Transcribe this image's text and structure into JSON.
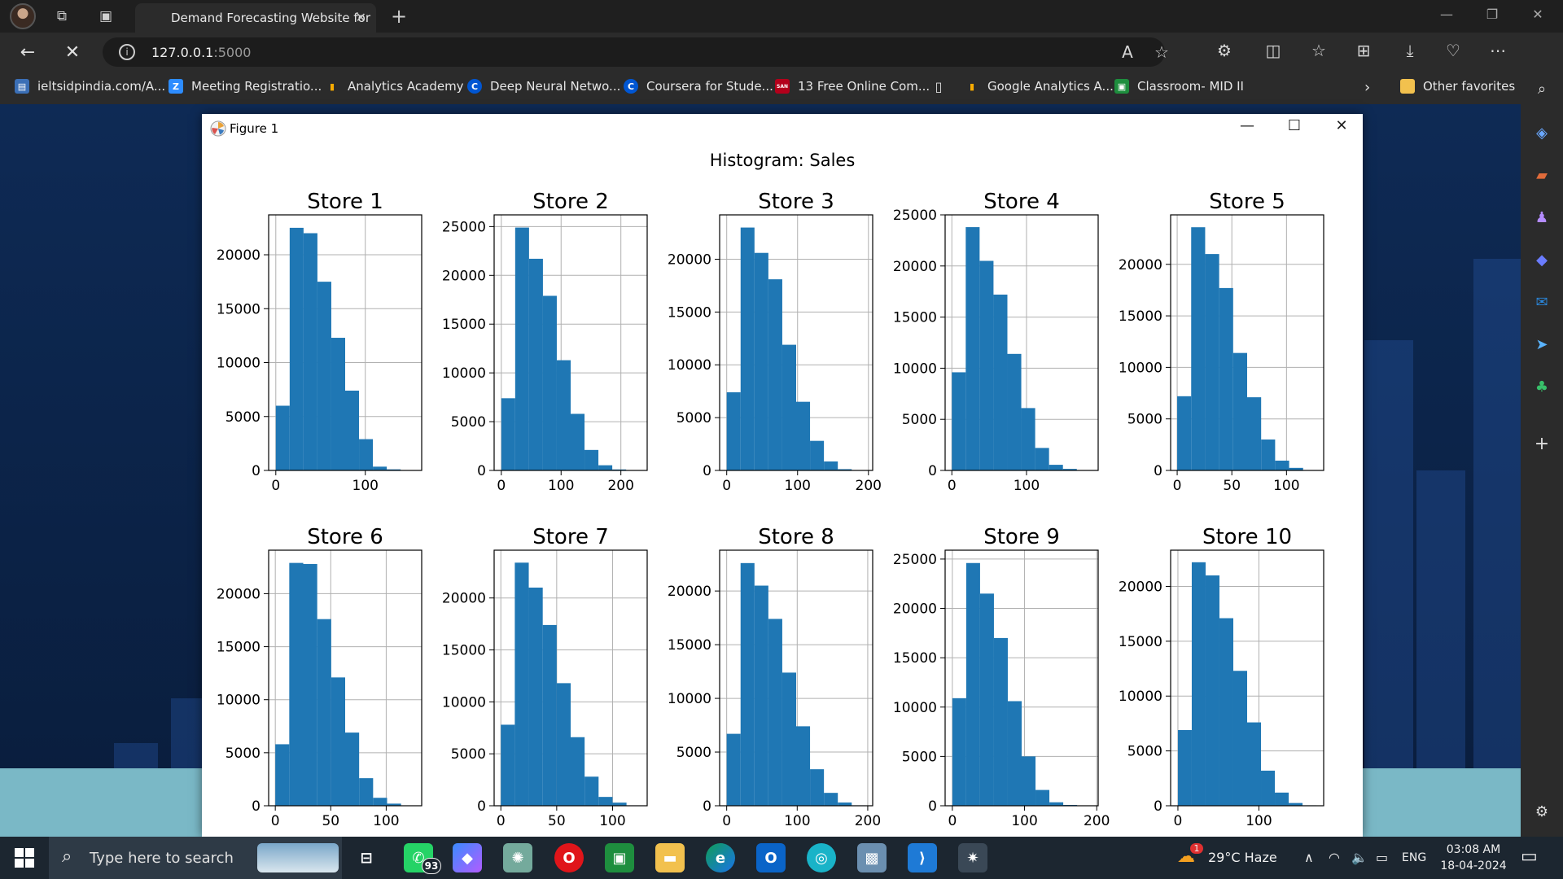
{
  "browser": {
    "tab_title": "Demand Forecasting Website for",
    "url_host": "127.0.0.1",
    "url_port": ":5000",
    "favorites": [
      {
        "label": "ieltsidpindia.com/A...",
        "color": "#3b6fb6",
        "glyph": "▤"
      },
      {
        "label": "Meeting Registratio...",
        "color": "#2d8cff",
        "glyph": "Z"
      },
      {
        "label": "Analytics Academy",
        "color": "#f9ab00",
        "glyph": "▮"
      },
      {
        "label": "Deep Neural Netwo...",
        "color": "#0056d2",
        "glyph": "C"
      },
      {
        "label": "Coursera for Stude...",
        "color": "#0056d2",
        "glyph": "C"
      },
      {
        "label": "13 Free Online Com...",
        "color": "#b3001b",
        "glyph": "SAN"
      },
      {
        "label": "",
        "color": "#2b2b2b",
        "glyph": "▯"
      },
      {
        "label": "Google Analytics A...",
        "color": "#f9ab00",
        "glyph": "▮"
      },
      {
        "label": "Classroom- MID II",
        "color": "#1e8e3e",
        "glyph": "▣"
      }
    ],
    "other_favorites": "Other favorites"
  },
  "figure": {
    "window_title": "Figure 1",
    "suptitle": "Histogram: Sales"
  },
  "chart_data": {
    "type": "bar",
    "title": "Histogram: Sales",
    "subplots": [
      {
        "title": "Store 1",
        "bin_start": 0,
        "bin_width": 15.5,
        "values": [
          6000,
          22500,
          22000,
          17500,
          12300,
          7400,
          2900,
          350,
          100,
          20
        ],
        "xlim": [
          -8,
          163
        ],
        "ylim": [
          0,
          23700
        ],
        "xticks": [
          0,
          100
        ],
        "yticks": [
          0,
          5000,
          10000,
          15000,
          20000
        ]
      },
      {
        "title": "Store 2",
        "bin_start": 0,
        "bin_width": 23.2,
        "values": [
          7400,
          24900,
          21700,
          17900,
          11300,
          5800,
          2100,
          530,
          100,
          20
        ],
        "xlim": [
          -12,
          244
        ],
        "ylim": [
          0,
          26200
        ],
        "xticks": [
          0,
          100,
          200
        ],
        "yticks": [
          0,
          5000,
          10000,
          15000,
          20000,
          25000
        ]
      },
      {
        "title": "Store 3",
        "bin_start": 0,
        "bin_width": 19.6,
        "values": [
          7400,
          23000,
          20600,
          18100,
          11900,
          6500,
          2800,
          850,
          120,
          30
        ],
        "xlim": [
          -10,
          206
        ],
        "ylim": [
          0,
          24200
        ],
        "xticks": [
          0,
          100,
          200
        ],
        "yticks": [
          0,
          5000,
          10000,
          15000,
          20000
        ]
      },
      {
        "title": "Store 4",
        "bin_start": 0,
        "bin_width": 18.6,
        "values": [
          9600,
          23800,
          20500,
          17200,
          11400,
          6100,
          2200,
          550,
          150,
          20
        ],
        "xlim": [
          -9,
          196
        ],
        "ylim": [
          0,
          25000
        ],
        "xticks": [
          0,
          100
        ],
        "yticks": [
          0,
          5000,
          10000,
          15000,
          20000,
          25000
        ]
      },
      {
        "title": "Store 5",
        "bin_start": 0,
        "bin_width": 12.8,
        "values": [
          7200,
          23600,
          21000,
          17700,
          11400,
          7100,
          3000,
          950,
          250,
          40
        ],
        "xlim": [
          -6,
          134
        ],
        "ylim": [
          0,
          24800
        ],
        "xticks": [
          0,
          50,
          100
        ],
        "yticks": [
          0,
          5000,
          10000,
          15000,
          20000
        ]
      },
      {
        "title": "Store 6",
        "bin_start": 0,
        "bin_width": 12.6,
        "values": [
          5800,
          22900,
          22800,
          17600,
          12100,
          6900,
          2600,
          750,
          200,
          20
        ],
        "xlim": [
          -6,
          132
        ],
        "ylim": [
          0,
          24100
        ],
        "xticks": [
          0,
          50,
          100
        ],
        "yticks": [
          0,
          5000,
          10000,
          15000,
          20000
        ]
      },
      {
        "title": "Store 7",
        "bin_start": 0,
        "bin_width": 12.5,
        "values": [
          7800,
          23400,
          21000,
          17400,
          11800,
          6600,
          2800,
          850,
          300,
          40
        ],
        "xlim": [
          -6,
          131
        ],
        "ylim": [
          0,
          24600
        ],
        "xticks": [
          0,
          50,
          100
        ],
        "yticks": [
          0,
          5000,
          10000,
          15000,
          20000
        ]
      },
      {
        "title": "Store 8",
        "bin_start": 0,
        "bin_width": 19.7,
        "values": [
          6700,
          22600,
          20500,
          17400,
          12400,
          7400,
          3400,
          1200,
          300,
          40
        ],
        "xlim": [
          -10,
          207
        ],
        "ylim": [
          0,
          23800
        ],
        "xticks": [
          0,
          100,
          200
        ],
        "yticks": [
          0,
          5000,
          10000,
          15000,
          20000
        ]
      },
      {
        "title": "Store 9",
        "bin_start": 0,
        "bin_width": 19.2,
        "values": [
          10900,
          24600,
          21500,
          17000,
          10600,
          5000,
          1600,
          350,
          80,
          20
        ],
        "xlim": [
          -10,
          202
        ],
        "ylim": [
          0,
          25900
        ],
        "xticks": [
          0,
          100,
          200
        ],
        "yticks": [
          0,
          5000,
          10000,
          15000,
          20000,
          25000
        ]
      },
      {
        "title": "Store 10",
        "bin_start": 0,
        "bin_width": 17.1,
        "values": [
          6900,
          22200,
          21000,
          17100,
          12300,
          7600,
          3200,
          1200,
          250,
          40
        ],
        "xlim": [
          -9,
          180
        ],
        "ylim": [
          0,
          23300
        ],
        "xticks": [
          0,
          100
        ],
        "yticks": [
          0,
          5000,
          10000,
          15000,
          20000
        ]
      }
    ],
    "bar_color": "#1f77b4",
    "grid": true,
    "legend": "none"
  },
  "taskbar": {
    "search_placeholder": "Type here to search",
    "whatsapp_badge": "93",
    "weather": "29°C  Haze",
    "weather_badge": "1",
    "language": "ENG",
    "time": "03:08 AM",
    "date": "18-04-2024"
  }
}
